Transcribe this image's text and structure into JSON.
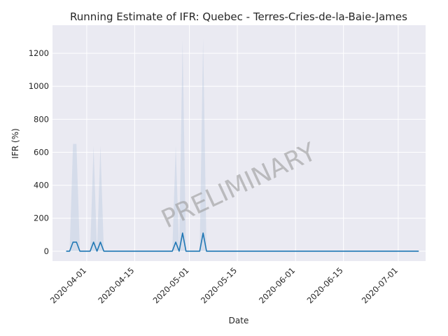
{
  "chart_data": {
    "type": "line",
    "title": "Running Estimate of IFR: Quebec - Terres-Cries-de-la-Baie-James",
    "xlabel": "Date",
    "ylabel": "IFR (%)",
    "watermark": "PRELIMINARY",
    "x_range": [
      "2020-03-22",
      "2020-07-09"
    ],
    "ylim": [
      -60,
      1370
    ],
    "x_ticks": [
      "2020-04-01",
      "2020-04-15",
      "2020-05-01",
      "2020-05-15",
      "2020-06-01",
      "2020-06-15",
      "2020-07-01"
    ],
    "y_ticks": [
      0,
      200,
      400,
      600,
      800,
      1000,
      1200
    ],
    "grid": true,
    "colors": {
      "line": "#1f77b4",
      "band": "#b0c4de",
      "background": "#eaeaf2",
      "grid": "#ffffff",
      "watermark": "#a0a0a0"
    },
    "series": [
      {
        "values": [
          [
            "2020-03-26",
            0,
            0,
            0
          ],
          [
            "2020-03-27",
            0,
            0,
            0
          ],
          [
            "2020-03-28",
            55,
            0,
            650
          ],
          [
            "2020-03-29",
            55,
            0,
            650
          ],
          [
            "2020-03-30",
            0,
            0,
            0
          ],
          [
            "2020-03-31",
            0,
            0,
            0
          ],
          [
            "2020-04-01",
            0,
            0,
            0
          ],
          [
            "2020-04-02",
            0,
            0,
            0
          ],
          [
            "2020-04-03",
            55,
            0,
            640
          ],
          [
            "2020-04-04",
            0,
            0,
            0
          ],
          [
            "2020-04-05",
            55,
            0,
            640
          ],
          [
            "2020-04-06",
            0,
            0,
            0
          ],
          [
            "2020-04-07",
            0,
            0,
            0
          ],
          [
            "2020-04-26",
            0,
            0,
            0
          ],
          [
            "2020-04-27",
            55,
            0,
            640
          ],
          [
            "2020-04-28",
            0,
            0,
            0
          ],
          [
            "2020-04-29",
            110,
            0,
            1280
          ],
          [
            "2020-04-30",
            0,
            0,
            0
          ],
          [
            "2020-05-04",
            0,
            0,
            0
          ],
          [
            "2020-05-05",
            110,
            0,
            1290
          ],
          [
            "2020-05-06",
            0,
            0,
            0
          ],
          [
            "2020-07-07",
            0,
            0,
            0
          ]
        ]
      }
    ]
  }
}
